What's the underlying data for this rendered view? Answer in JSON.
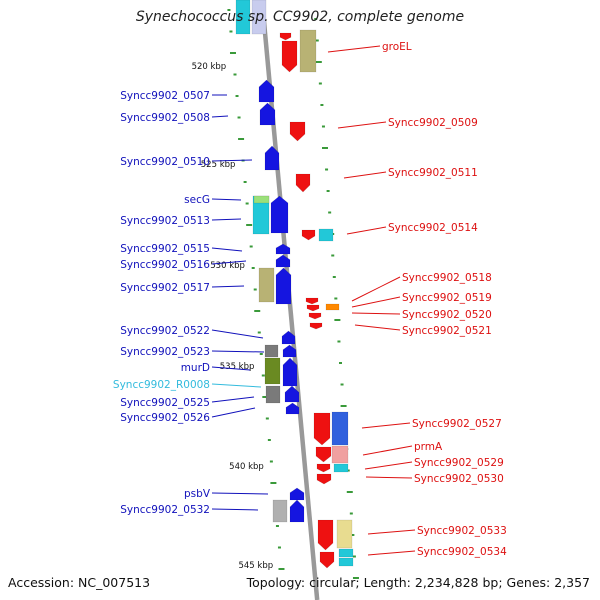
{
  "title": "Synechococcus sp. CC9902, complete genome",
  "footer": {
    "accession": "Accession: NC_007513",
    "topology": "Topology: circular; Length: 2,234,828 bp; Genes: 2,357"
  },
  "colors": {
    "left_label": "#1111bb",
    "right_label": "#dd1111",
    "rna_label": "#33bbdd",
    "backbone": "#999999",
    "tick": "#3a9a3a"
  },
  "kbp_labels": [
    {
      "text": "520 kbp",
      "pos": 520
    },
    {
      "text": "525 kbp",
      "pos": 525
    },
    {
      "text": "530 kbp",
      "pos": 530
    },
    {
      "text": "535 kbp",
      "pos": 535
    },
    {
      "text": "540 kbp",
      "pos": 540
    },
    {
      "text": "545 kbp",
      "pos": 545
    }
  ],
  "left_labels": [
    {
      "text": "Syncc9902_0507",
      "kind": "gene"
    },
    {
      "text": "Syncc9902_0508",
      "kind": "gene"
    },
    {
      "text": "Syncc9902_0510",
      "kind": "gene"
    },
    {
      "text": "secG",
      "kind": "gene"
    },
    {
      "text": "Syncc9902_0513",
      "kind": "gene"
    },
    {
      "text": "Syncc9902_0515",
      "kind": "gene"
    },
    {
      "text": "Syncc9902_0516",
      "kind": "gene"
    },
    {
      "text": "Syncc9902_0517",
      "kind": "gene"
    },
    {
      "text": "Syncc9902_0522",
      "kind": "gene"
    },
    {
      "text": "Syncc9902_0523",
      "kind": "gene"
    },
    {
      "text": "murD",
      "kind": "gene"
    },
    {
      "text": "Syncc9902_R0008",
      "kind": "rna"
    },
    {
      "text": "Syncc9902_0525",
      "kind": "gene"
    },
    {
      "text": "Syncc9902_0526",
      "kind": "gene"
    },
    {
      "text": "psbV",
      "kind": "gene"
    },
    {
      "text": "Syncc9902_0532",
      "kind": "gene"
    }
  ],
  "right_labels": [
    {
      "text": "groEL"
    },
    {
      "text": "Syncc9902_0509"
    },
    {
      "text": "Syncc9902_0511"
    },
    {
      "text": "Syncc9902_0514"
    },
    {
      "text": "Syncc9902_0518"
    },
    {
      "text": "Syncc9902_0519"
    },
    {
      "text": "Syncc9902_0520"
    },
    {
      "text": "Syncc9902_0521"
    },
    {
      "text": "Syncc9902_0527"
    },
    {
      "text": "prmA"
    },
    {
      "text": "Syncc9902_0529"
    },
    {
      "text": "Syncc9902_0530"
    },
    {
      "text": "Syncc9902_0533"
    },
    {
      "text": "Syncc9902_0534"
    }
  ]
}
